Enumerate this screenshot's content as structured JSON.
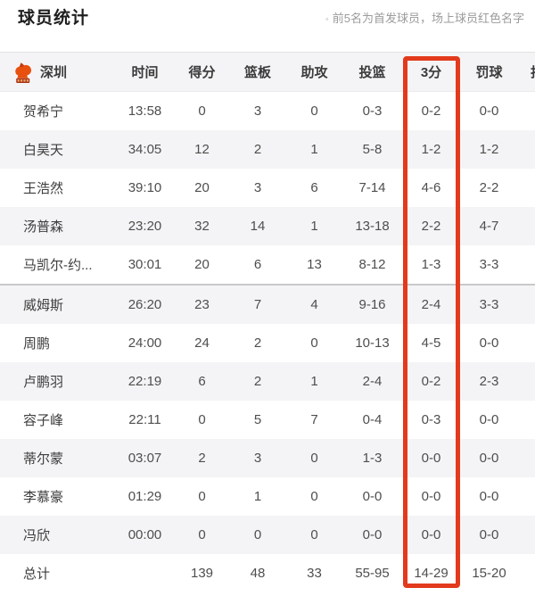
{
  "page": {
    "title": "球员统计",
    "note_bullet": "◦",
    "note": "前5名为首发球员，场上球员红色名字"
  },
  "table": {
    "team": "深圳",
    "team_logo_icon": "shenzhen-leopards-logo",
    "columns": [
      "时间",
      "得分",
      "篮板",
      "助攻",
      "投篮",
      "3分",
      "罚球",
      "抢断"
    ],
    "highlight": {
      "column": "3分",
      "color": "#e23a1c"
    },
    "starters_count": 5,
    "rows": [
      {
        "cells": [
          "贺希宁",
          "13:58",
          "0",
          "3",
          "0",
          "0-3",
          "0-2",
          "0-0"
        ]
      },
      {
        "cells": [
          "白昊天",
          "34:05",
          "12",
          "2",
          "1",
          "5-8",
          "1-2",
          "1-2"
        ]
      },
      {
        "cells": [
          "王浩然",
          "39:10",
          "20",
          "3",
          "6",
          "7-14",
          "4-6",
          "2-2"
        ]
      },
      {
        "cells": [
          "汤普森",
          "23:20",
          "32",
          "14",
          "1",
          "13-18",
          "2-2",
          "4-7"
        ]
      },
      {
        "cells": [
          "马凯尔-约...",
          "30:01",
          "20",
          "6",
          "13",
          "8-12",
          "1-3",
          "3-3"
        ]
      },
      {
        "cells": [
          "威姆斯",
          "26:20",
          "23",
          "7",
          "4",
          "9-16",
          "2-4",
          "3-3"
        ]
      },
      {
        "cells": [
          "周鹏",
          "24:00",
          "24",
          "2",
          "0",
          "10-13",
          "4-5",
          "0-0"
        ]
      },
      {
        "cells": [
          "卢鹏羽",
          "22:19",
          "6",
          "2",
          "1",
          "2-4",
          "0-2",
          "2-3"
        ]
      },
      {
        "cells": [
          "容子峰",
          "22:11",
          "0",
          "5",
          "7",
          "0-4",
          "0-3",
          "0-0"
        ]
      },
      {
        "cells": [
          "蒂尔蒙",
          "03:07",
          "2",
          "3",
          "0",
          "1-3",
          "0-0",
          "0-0"
        ]
      },
      {
        "cells": [
          "李慕豪",
          "01:29",
          "0",
          "1",
          "0",
          "0-0",
          "0-0",
          "0-0"
        ]
      },
      {
        "cells": [
          "冯欣",
          "00:00",
          "0",
          "0",
          "0",
          "0-0",
          "0-0",
          "0-0"
        ]
      },
      {
        "cells": [
          "总计",
          "",
          "139",
          "48",
          "33",
          "55-95",
          "14-29",
          "15-20"
        ],
        "is_total": true
      }
    ]
  }
}
